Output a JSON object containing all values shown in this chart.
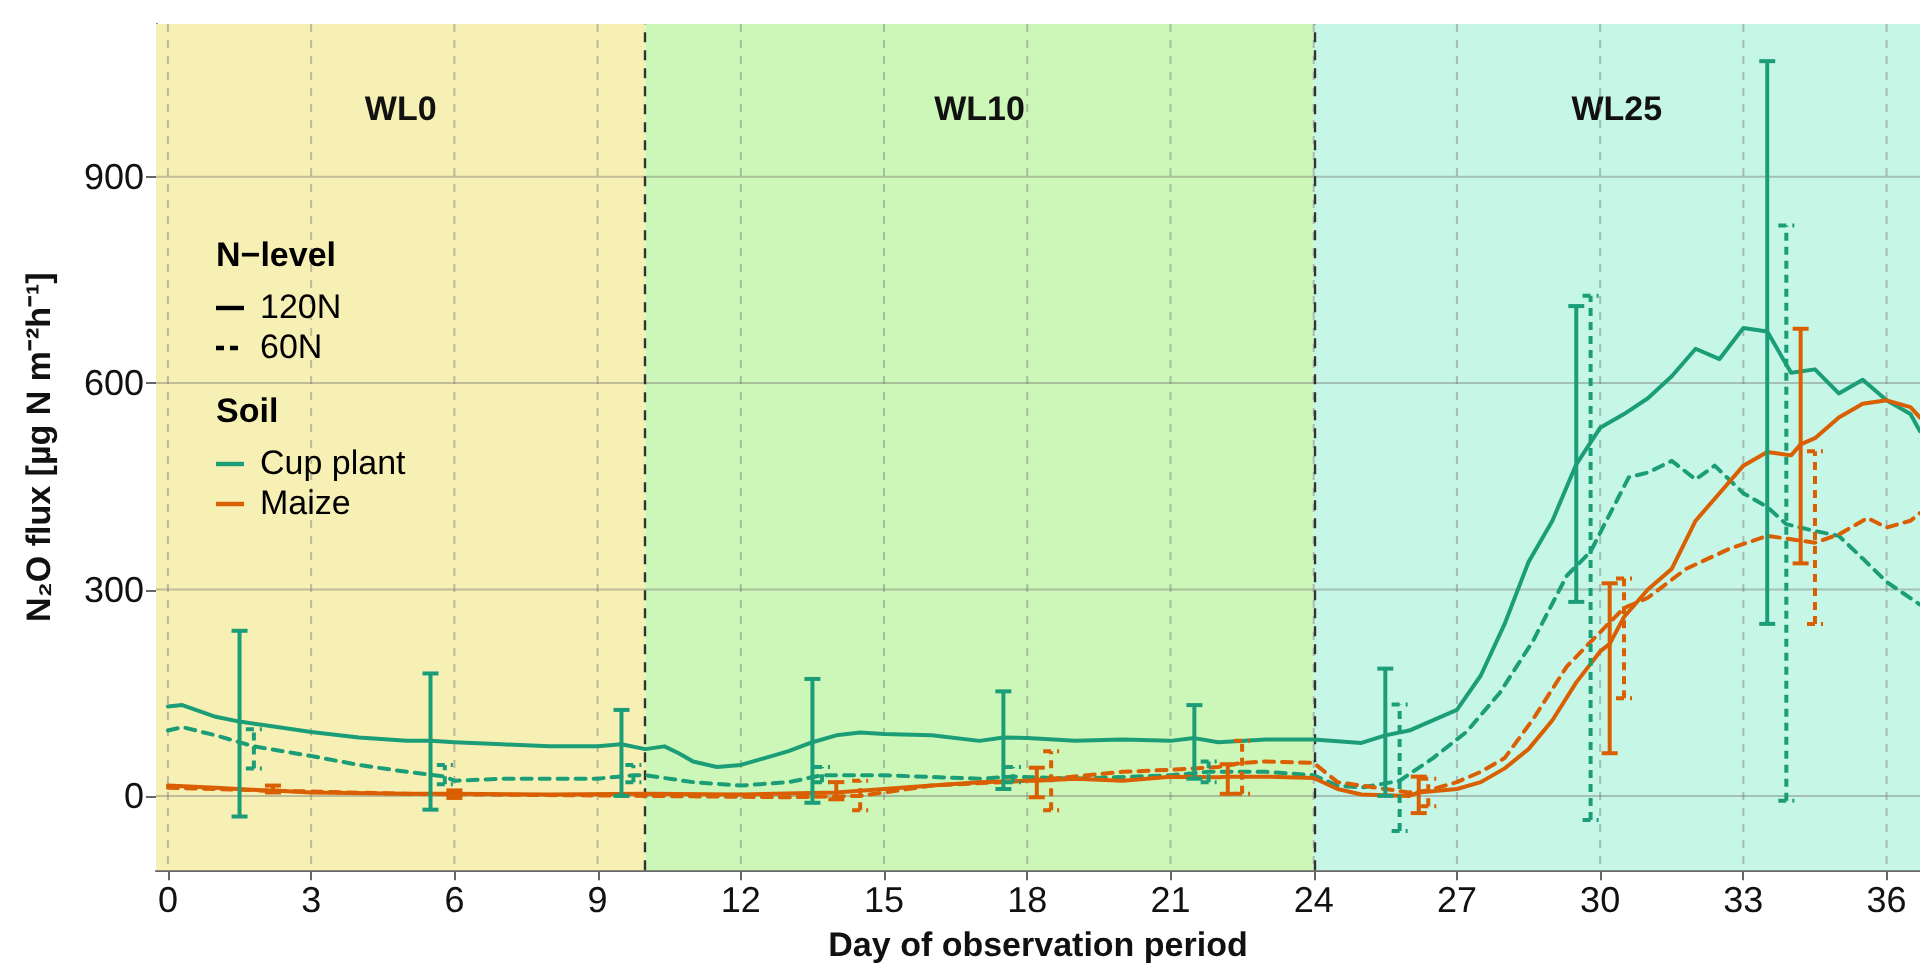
{
  "chart_data": {
    "type": "line",
    "xlabel": "Day of observation period",
    "ylabel": "N₂O flux [µg N m⁻²h⁻¹]",
    "xlim": [
      -0.25,
      36.7
    ],
    "xticks": [
      0,
      3,
      6,
      9,
      12,
      15,
      18,
      21,
      24,
      27,
      30,
      33,
      36
    ],
    "ylim": [
      -108,
      1122
    ],
    "yticks": [
      0,
      300,
      600,
      900
    ],
    "grid": true,
    "annotations": [
      "N−level",
      "120N",
      "60N",
      "Soil",
      "Cup plant",
      "Maize"
    ],
    "bands": [
      {
        "axis": "x",
        "from": -0.25,
        "to": 10,
        "label": "WL0",
        "color": "#f7f0b4"
      },
      {
        "axis": "x",
        "from": 10,
        "to": 24,
        "label": "WL10",
        "color": "#ccf7b8"
      },
      {
        "axis": "x",
        "from": 24,
        "to": 36.7,
        "label": "WL25",
        "color": "#c6f7e6"
      }
    ],
    "ref_lines": [
      {
        "axis": "x",
        "value": 10,
        "color": "#333333",
        "line_style": "dashed"
      },
      {
        "axis": "x",
        "value": 24,
        "color": "#333333",
        "line_style": "dashed"
      }
    ],
    "series": [
      {
        "color": "#1b9e77",
        "line_style": "solid",
        "x": [
          0,
          0.3,
          1,
          1.5,
          2,
          3,
          4,
          5,
          5.5,
          6,
          7,
          8,
          9,
          9.5,
          10,
          10.4,
          10.7,
          11,
          11.5,
          12,
          12.5,
          13,
          13.5,
          14,
          14.5,
          15,
          16,
          17,
          17.5,
          18,
          19,
          20,
          21,
          21.5,
          22,
          23,
          24,
          25,
          25.5,
          26,
          27,
          27.5,
          28,
          28.5,
          29,
          29.5,
          30,
          30.5,
          31,
          31.5,
          32,
          32.5,
          33,
          33.5,
          34,
          34.5,
          35,
          35.5,
          36,
          36.5,
          36.7
        ],
        "values": [
          130,
          132,
          115,
          108,
          103,
          93,
          85,
          80,
          80,
          78,
          75,
          72,
          72,
          75,
          68,
          72,
          62,
          50,
          42,
          45,
          55,
          65,
          78,
          88,
          92,
          90,
          88,
          80,
          85,
          84,
          80,
          82,
          80,
          84,
          78,
          82,
          82,
          77,
          88,
          95,
          125,
          175,
          250,
          340,
          400,
          482,
          535,
          555,
          578,
          610,
          650,
          635,
          680,
          675,
          615,
          620,
          585,
          605,
          575,
          555,
          530
        ],
        "errors": [
          null,
          null,
          null,
          [
            -30,
            240
          ],
          null,
          null,
          null,
          null,
          [
            -20,
            178
          ],
          null,
          null,
          null,
          null,
          [
            0,
            125
          ],
          null,
          null,
          null,
          null,
          null,
          null,
          null,
          null,
          [
            -10,
            170
          ],
          null,
          null,
          null,
          null,
          null,
          [
            10,
            152
          ],
          null,
          null,
          null,
          null,
          [
            25,
            132
          ],
          null,
          null,
          null,
          null,
          [
            0,
            185
          ],
          null,
          null,
          null,
          null,
          null,
          null,
          [
            282,
            712
          ],
          null,
          null,
          null,
          null,
          null,
          null,
          null,
          [
            250,
            1068
          ],
          null,
          null,
          null,
          null,
          null,
          null,
          null
        ]
      },
      {
        "color": "#1b9e77",
        "line_style": "dashed",
        "x": [
          0,
          0.3,
          1,
          1.8,
          3,
          4,
          5,
          5.8,
          6,
          7,
          8,
          9,
          9.75,
          10,
          11,
          12,
          13,
          13.7,
          15,
          17,
          17.7,
          19,
          21,
          21.8,
          23,
          24,
          24.5,
          25,
          25.8,
          26.5,
          27.2,
          27.9,
          28.6,
          29.3,
          29.8,
          30.1,
          30.6,
          31,
          31.5,
          32,
          32.4,
          33,
          33.5,
          33.9,
          34.5,
          35,
          35.5,
          36,
          36.7
        ],
        "values": [
          95,
          100,
          88,
          72,
          58,
          45,
          35,
          28,
          22,
          25,
          25,
          25,
          30,
          30,
          20,
          15,
          20,
          30,
          30,
          25,
          28,
          25,
          30,
          35,
          35,
          30,
          15,
          12,
          22,
          55,
          93,
          150,
          226,
          320,
          355,
          396,
          463,
          470,
          487,
          460,
          480,
          440,
          420,
          395,
          385,
          378,
          345,
          311,
          278
        ],
        "errors": [
          null,
          null,
          null,
          [
            40,
            97
          ],
          null,
          null,
          null,
          [
            17,
            45
          ],
          null,
          null,
          null,
          null,
          [
            20,
            45
          ],
          null,
          null,
          null,
          null,
          [
            20,
            42
          ],
          null,
          null,
          [
            20,
            42
          ],
          null,
          null,
          [
            20,
            50
          ],
          null,
          null,
          null,
          null,
          [
            -51,
            133
          ],
          null,
          null,
          null,
          null,
          null,
          [
            -35,
            727
          ],
          null,
          null,
          null,
          null,
          null,
          null,
          null,
          null,
          [
            -7,
            829
          ],
          null,
          null,
          null,
          null,
          null
        ]
      },
      {
        "color": "#d95f02",
        "line_style": "solid",
        "x": [
          0,
          1,
          2,
          2.2,
          3,
          5,
          6,
          8,
          10,
          12,
          14,
          15,
          16,
          17,
          18,
          18.2,
          19,
          20,
          21,
          22,
          22.2,
          23,
          24,
          24.5,
          25,
          26,
          26.2,
          27,
          27.5,
          28,
          28.5,
          29,
          29.5,
          30,
          30.2,
          30.5,
          31,
          31.5,
          32,
          32.5,
          33,
          33.5,
          34,
          34.2,
          34.5,
          35,
          35.5,
          36,
          36.5,
          36.7
        ],
        "values": [
          15,
          12,
          8,
          8,
          5,
          3,
          3,
          2,
          3,
          2,
          5,
          10,
          15,
          20,
          22,
          22,
          25,
          22,
          28,
          27,
          28,
          28,
          26,
          10,
          2,
          0,
          5,
          10,
          20,
          40,
          68,
          110,
          165,
          210,
          221,
          260,
          300,
          330,
          400,
          440,
          480,
          500,
          495,
          511,
          520,
          550,
          570,
          575,
          565,
          550
        ],
        "errors": [
          null,
          null,
          null,
          [
            5,
            15
          ],
          null,
          null,
          [
            -3,
            8
          ],
          null,
          null,
          null,
          [
            -5,
            20
          ],
          null,
          null,
          null,
          null,
          [
            -2,
            41
          ],
          null,
          null,
          null,
          null,
          [
            3,
            46
          ],
          null,
          null,
          null,
          null,
          null,
          [
            -25,
            28
          ],
          null,
          null,
          null,
          null,
          null,
          null,
          null,
          [
            62,
            309
          ],
          null,
          null,
          null,
          null,
          null,
          null,
          null,
          null,
          [
            338,
            679
          ],
          null,
          null,
          null,
          null,
          null,
          null
        ]
      },
      {
        "color": "#d95f02",
        "line_style": "dashed",
        "x": [
          0,
          2,
          5,
          10,
          13,
          14.5,
          16,
          18,
          18.5,
          20,
          21,
          22,
          22.5,
          23,
          24,
          24.5,
          25,
          26,
          26.4,
          27,
          27.5,
          28,
          28.6,
          29.3,
          29.9,
          30.5,
          31,
          31.8,
          32.7,
          33.5,
          34.5,
          35,
          35.6,
          36,
          36.5,
          36.7
        ],
        "values": [
          12,
          8,
          3,
          0,
          -2,
          0,
          15,
          22,
          25,
          35,
          38,
          42,
          48,
          50,
          48,
          20,
          15,
          5,
          8,
          20,
          35,
          55,
          112,
          188,
          231,
          273,
          288,
          330,
          359,
          378,
          368,
          380,
          404,
          390,
          400,
          411
        ],
        "errors": [
          null,
          null,
          null,
          null,
          null,
          [
            -21,
            22
          ],
          null,
          null,
          [
            -21,
            65
          ],
          null,
          null,
          null,
          [
            3,
            80
          ],
          null,
          null,
          null,
          null,
          null,
          [
            -15,
            25
          ],
          null,
          null,
          null,
          null,
          null,
          null,
          [
            142,
            316
          ],
          null,
          null,
          null,
          null,
          [
            250,
            501
          ],
          null,
          null,
          null,
          null,
          null
        ]
      }
    ]
  }
}
